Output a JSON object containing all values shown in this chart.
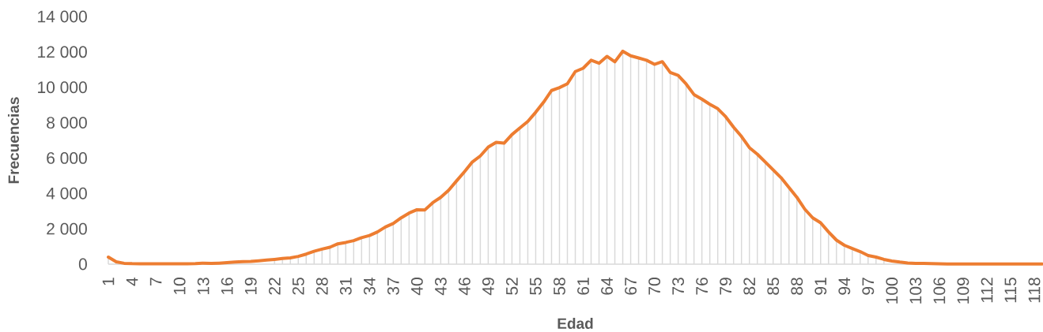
{
  "chart_data": {
    "type": "line",
    "xlabel": "Edad",
    "ylabel": "Frecuencias",
    "categories": [
      "1",
      null,
      null,
      "4",
      null,
      null,
      "7",
      null,
      null,
      "10",
      null,
      null,
      "13",
      null,
      null,
      "16",
      null,
      null,
      "19",
      null,
      null,
      "22",
      null,
      null,
      "25",
      null,
      null,
      "28",
      null,
      null,
      "31",
      null,
      null,
      "34",
      null,
      null,
      "37",
      null,
      null,
      "40",
      null,
      null,
      "43",
      null,
      null,
      "46",
      null,
      null,
      "49",
      null,
      null,
      "52",
      null,
      null,
      "55",
      null,
      null,
      "58",
      null,
      null,
      "61",
      null,
      null,
      "64",
      null,
      null,
      "67",
      null,
      null,
      "70",
      null,
      null,
      "73",
      null,
      null,
      "76",
      null,
      null,
      "79",
      null,
      null,
      "82",
      null,
      null,
      "85",
      null,
      null,
      "88",
      null,
      null,
      "91",
      null,
      null,
      "94",
      null,
      null,
      "97",
      null,
      null,
      "100",
      null,
      null,
      "103",
      null,
      null,
      "106",
      null,
      null,
      "109",
      null,
      null,
      "112",
      null,
      null,
      "115",
      null,
      null,
      "118",
      null
    ],
    "series": [
      {
        "type": "bar",
        "color": "#d9d9d9",
        "values": [
          400,
          null,
          null,
          null,
          null,
          null,
          null,
          null,
          null,
          null,
          null,
          null,
          null,
          null,
          null,
          null,
          null,
          null,
          null,
          null,
          null,
          270,
          320,
          360,
          440,
          570,
          730,
          850,
          960,
          1150,
          1230,
          1330,
          1500,
          1620,
          1820,
          2100,
          2300,
          2620,
          2890,
          3080,
          3070,
          3480,
          3780,
          4180,
          4710,
          5230,
          5780,
          6120,
          6620,
          6890,
          6840,
          7330,
          7700,
          8070,
          8590,
          9160,
          9820,
          9980,
          10200,
          10890,
          11080,
          11530,
          11360,
          11750,
          11440,
          12040,
          11780,
          11660,
          11530,
          11300,
          11450,
          10840,
          10670,
          10190,
          9590,
          9330,
          9040,
          8790,
          8340,
          7750,
          7220,
          6590,
          6220,
          5780,
          5330,
          4890,
          4340,
          3780,
          3110,
          2620,
          2340,
          1820,
          1360,
          1070,
          890,
          710,
          490,
          400,
          270,
          null,
          null,
          null,
          null,
          null,
          null,
          null,
          null,
          null,
          null,
          null,
          null,
          null,
          null,
          null,
          null,
          null,
          null,
          null,
          null
        ]
      },
      {
        "color": "#ed7d31",
        "values": [
          400,
          130,
          50,
          30,
          20,
          20,
          20,
          20,
          20,
          20,
          20,
          30,
          60,
          40,
          60,
          90,
          120,
          140,
          160,
          190,
          230,
          270,
          320,
          360,
          440,
          570,
          730,
          850,
          960,
          1150,
          1230,
          1330,
          1500,
          1620,
          1820,
          2100,
          2300,
          2620,
          2890,
          3080,
          3070,
          3480,
          3780,
          4180,
          4710,
          5230,
          5780,
          6120,
          6620,
          6890,
          6840,
          7330,
          7700,
          8070,
          8590,
          9160,
          9820,
          9980,
          10200,
          10890,
          11080,
          11530,
          11360,
          11750,
          11440,
          12040,
          11780,
          11660,
          11530,
          11300,
          11450,
          10840,
          10670,
          10190,
          9590,
          9330,
          9040,
          8790,
          8340,
          7750,
          7220,
          6590,
          6220,
          5780,
          5330,
          4890,
          4340,
          3780,
          3110,
          2620,
          2340,
          1820,
          1360,
          1070,
          890,
          710,
          490,
          400,
          270,
          180,
          120,
          70,
          50,
          40,
          30,
          20,
          10,
          10,
          10,
          10,
          10,
          10,
          10,
          10,
          10,
          10,
          10,
          10,
          10
        ]
      }
    ],
    "ylim": [
      0,
      14000
    ],
    "yticks": [
      0,
      {
        "value": 2000,
        "label": "2 000"
      },
      {
        "value": 4000,
        "label": "4 000"
      },
      {
        "value": 6000,
        "label": "6 000"
      },
      {
        "value": 8000,
        "label": "8 000"
      },
      {
        "value": 10000,
        "label": "10 000"
      },
      {
        "value": 12000,
        "label": "12 000"
      },
      {
        "value": 14000,
        "label": "14 000"
      }
    ]
  }
}
